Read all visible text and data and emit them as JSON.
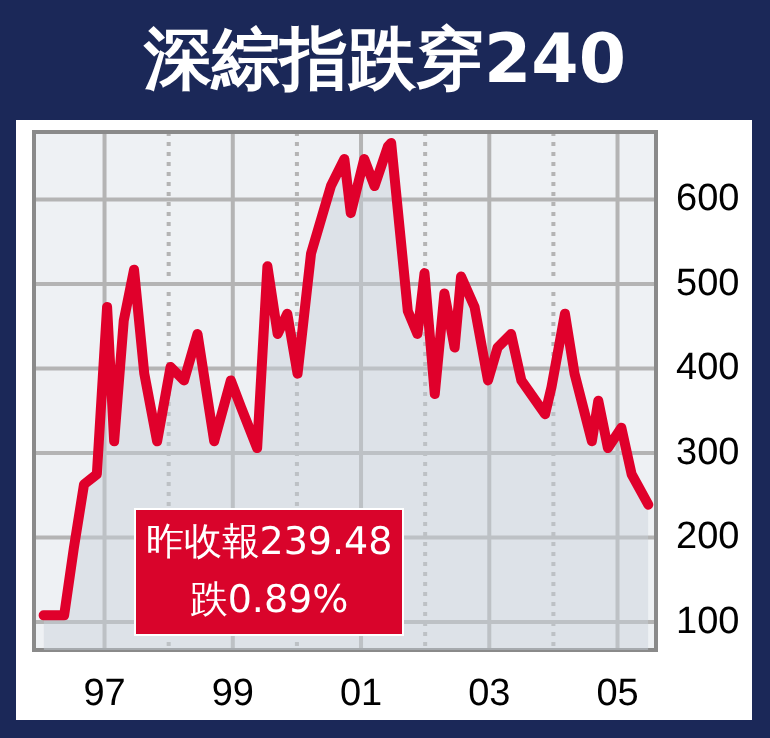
{
  "chart_data": {
    "type": "area",
    "title": "深綜指跌穿240",
    "x": [
      1996.05,
      1996.37,
      1996.52,
      1996.68,
      1996.88,
      1997.04,
      1997.15,
      1997.3,
      1997.46,
      1997.62,
      1997.82,
      1998.03,
      1998.24,
      1998.45,
      1998.71,
      1998.97,
      1999.13,
      1999.38,
      1999.54,
      1999.7,
      1999.85,
      2000.01,
      2000.22,
      2000.53,
      2000.74,
      2000.84,
      2001.05,
      2001.21,
      2001.42,
      2001.47,
      2001.73,
      2001.88,
      2001.99,
      2002.15,
      2002.3,
      2002.46,
      2002.56,
      2002.77,
      2002.98,
      2003.13,
      2003.34,
      2003.5,
      2003.87,
      2003.97,
      2004.18,
      2004.33,
      2004.6,
      2004.7,
      2004.85,
      2005.06,
      2005.22,
      2005.48
    ],
    "series": [
      {
        "color": "#e0002b",
        "values": [
          108,
          108,
          187,
          263,
          275,
          473,
          314,
          457,
          517,
          394,
          314,
          402,
          386,
          441,
          314,
          386,
          354,
          306,
          521,
          441,
          465,
          394,
          536,
          616,
          648,
          584,
          648,
          616,
          663,
          667,
          468,
          441,
          513,
          370,
          489,
          425,
          509,
          473,
          386,
          425,
          441,
          386,
          346,
          378,
          465,
          394,
          314,
          362,
          306,
          330,
          275,
          239
        ]
      }
    ],
    "xlim": [
      1995.9,
      2005.6
    ],
    "xticks": [
      {
        "value": 1997,
        "label": "97"
      },
      {
        "value": 1998,
        "label": null
      },
      {
        "value": 1999,
        "label": "99"
      },
      {
        "value": 2000,
        "label": null
      },
      {
        "value": 2001,
        "label": "01"
      },
      {
        "value": 2002,
        "label": null
      },
      {
        "value": 2003,
        "label": "03"
      },
      {
        "value": 2004,
        "label": null
      },
      {
        "value": 2005,
        "label": "05"
      }
    ],
    "ylim": [
      67,
      680
    ],
    "yticks": [
      100,
      200,
      300,
      400,
      500,
      600
    ],
    "grid": true,
    "marker": "none",
    "annotations": [
      "昨收報239.48",
      "跌0.89%"
    ]
  }
}
